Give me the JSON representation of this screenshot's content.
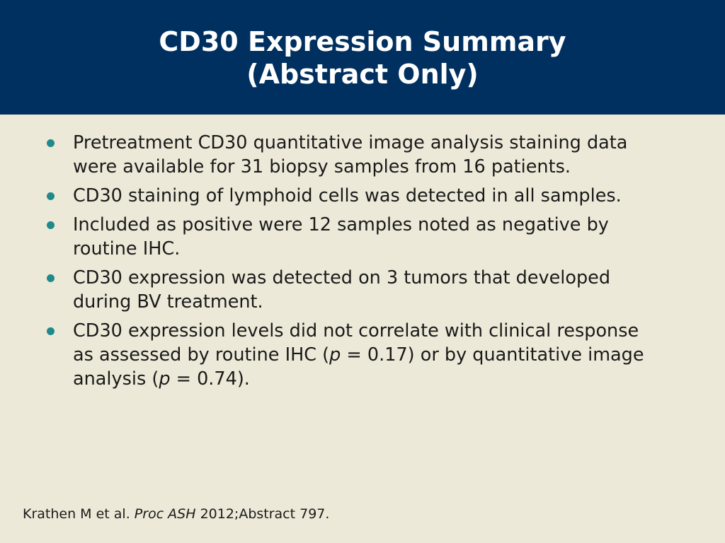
{
  "header": {
    "title_lines": [
      "CD30 Expression Summary",
      "(Abstract Only)"
    ]
  },
  "bullets": [
    {
      "runs": [
        {
          "text": "Pretreatment CD30 quantitative image analysis staining data were available for 31 biopsy samples from 16 patients.",
          "italic": false
        }
      ]
    },
    {
      "runs": [
        {
          "text": "CD30 staining of lymphoid cells was detected in all samples.",
          "italic": false
        }
      ]
    },
    {
      "runs": [
        {
          "text": "Included as positive were 12 samples noted as negative by routine IHC.",
          "italic": false
        }
      ]
    },
    {
      "runs": [
        {
          "text": "CD30 expression was detected on 3 tumors that developed during BV treatment.",
          "italic": false
        }
      ]
    },
    {
      "runs": [
        {
          "text": "CD30 expression levels did not correlate with clinical response as assessed by routine IHC (",
          "italic": false
        },
        {
          "text": "p",
          "italic": true
        },
        {
          "text": " = 0.17) or by quantitative image analysis (",
          "italic": false
        },
        {
          "text": "p",
          "italic": true
        },
        {
          "text": " = 0.74).",
          "italic": false
        }
      ]
    }
  ],
  "citation": {
    "runs": [
      {
        "text": "Krathen M et al. ",
        "italic": false
      },
      {
        "text": "Proc ASH",
        "italic": true
      },
      {
        "text": " 2012;Abstract 797.",
        "italic": false
      }
    ]
  }
}
